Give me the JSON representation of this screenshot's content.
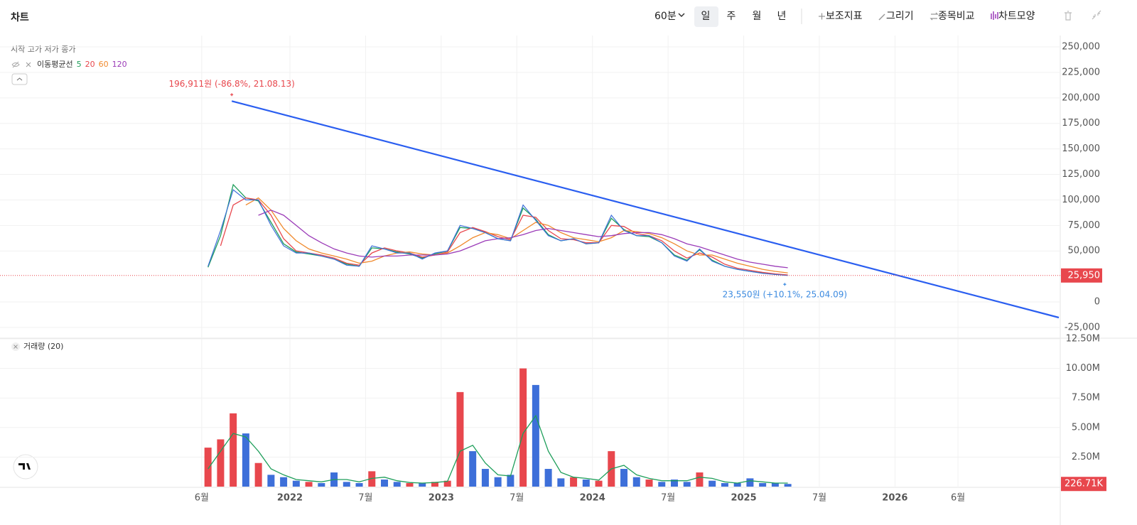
{
  "toolbar": {
    "title": "차트",
    "interval": "60분",
    "periods": [
      "일",
      "주",
      "월",
      "년"
    ],
    "tools": [
      "보조지표",
      "그리기",
      "종목비교",
      "차트모양"
    ]
  },
  "chart_data": [
    {
      "type": "line",
      "ohlc_legend": "시작 고가 저가 종가",
      "xlim": [
        "2020-02",
        "2027-02"
      ],
      "xticks": [
        {
          "value": "2021-06",
          "label": "6월"
        },
        {
          "value": "2022-01",
          "label": "2022"
        },
        {
          "value": "2022-07",
          "label": "7월"
        },
        {
          "value": "2023-01",
          "label": "2023"
        },
        {
          "value": "2023-07",
          "label": "7월"
        },
        {
          "value": "2024-01",
          "label": "2024"
        },
        {
          "value": "2024-07",
          "label": "7월"
        },
        {
          "value": "2025-01",
          "label": "2025"
        },
        {
          "value": "2025-07",
          "label": "7월"
        },
        {
          "value": "2026-01",
          "label": "2026"
        },
        {
          "value": "2026-06",
          "label": "6월"
        }
      ],
      "ylim": [
        -34800,
        257700
      ],
      "yticks": [
        {
          "value": 250000,
          "label": "250,000"
        },
        {
          "value": 225000,
          "label": "225,000"
        },
        {
          "value": 200000,
          "label": "200,000"
        },
        {
          "value": 175000,
          "label": "175,000"
        },
        {
          "value": 150000,
          "label": "150,000"
        },
        {
          "value": 125000,
          "label": "125,000"
        },
        {
          "value": 100000,
          "label": "100,000"
        },
        {
          "value": 75000,
          "label": "75,000"
        },
        {
          "value": 50000,
          "label": "50,000"
        },
        0,
        {
          "value": -25000,
          "label": "-25,000"
        }
      ],
      "grid": true,
      "x": [
        "2021-06",
        "2021-07",
        "2021-08",
        "2021-09",
        "2021-10",
        "2021-11",
        "2021-12",
        "2022-01",
        "2022-02",
        "2022-03",
        "2022-04",
        "2022-05",
        "2022-06",
        "2022-07",
        "2022-08",
        "2022-09",
        "2022-10",
        "2022-11",
        "2022-12",
        "2023-01",
        "2023-02",
        "2023-03",
        "2023-04",
        "2023-05",
        "2023-06",
        "2023-07",
        "2023-08",
        "2023-09",
        "2023-10",
        "2023-11",
        "2023-12",
        "2024-01",
        "2024-02",
        "2024-03",
        "2024-04",
        "2024-05",
        "2024-06",
        "2024-07",
        "2024-08",
        "2024-09",
        "2024-10",
        "2024-11",
        "2024-12",
        "2025-01",
        "2025-02",
        "2025-03",
        "2025-04"
      ],
      "close": {
        "color": "#3d6fd9",
        "values": [
          35000,
          70000,
          110000,
          100000,
          100000,
          75000,
          55000,
          48000,
          48000,
          45000,
          42000,
          36000,
          35000,
          55000,
          52000,
          48000,
          48000,
          42000,
          48000,
          50000,
          75000,
          72000,
          68000,
          62000,
          60000,
          95000,
          80000,
          65000,
          60000,
          62000,
          57000,
          58000,
          85000,
          70000,
          65000,
          65000,
          58000,
          45000,
          40000,
          52000,
          40000,
          35000,
          32000,
          30000,
          28000,
          27000,
          25950
        ]
      },
      "moving_averages": {
        "label": "이동평균선",
        "series": [
          {
            "name": "5",
            "color": "#1e9e5a",
            "values": [
              34000,
              65000,
              115000,
              102000,
              99000,
              78000,
              57000,
              49000,
              47000,
              45000,
              42000,
              37000,
              35000,
              53000,
              52000,
              49000,
              47000,
              43000,
              47000,
              50000,
              73000,
              72000,
              68000,
              62000,
              60000,
              92000,
              81000,
              66000,
              60000,
              62000,
              57000,
              58000,
              82000,
              71000,
              65000,
              64000,
              58000,
              46000,
              41000,
              51000,
              41000,
              35000,
              32000,
              30000,
              28500,
              27000,
              26200
            ]
          },
          {
            "name": "20",
            "color": "#e8474d",
            "values": [
              null,
              55000,
              95000,
              102000,
              100000,
              85000,
              62000,
              50000,
              48000,
              46000,
              43000,
              38000,
              36000,
              48000,
              53000,
              50000,
              48000,
              44000,
              46000,
              49000,
              68000,
              73000,
              69000,
              64000,
              61000,
              85000,
              83000,
              70000,
              62000,
              61000,
              58000,
              58000,
              75000,
              74000,
              67000,
              65000,
              60000,
              50000,
              43000,
              48000,
              44000,
              37000,
              33000,
              31000,
              29000,
              27500,
              26500
            ]
          },
          {
            "name": "60",
            "color": "#f0892c",
            "values": [
              null,
              null,
              null,
              95000,
              102000,
              90000,
              72000,
              60000,
              52000,
              48000,
              45000,
              42000,
              38000,
              40000,
              45000,
              48000,
              49000,
              47000,
              46000,
              48000,
              55000,
              63000,
              68000,
              66000,
              62000,
              70000,
              78000,
              75000,
              68000,
              63000,
              61000,
              59000,
              63000,
              70000,
              69000,
              67000,
              63000,
              57000,
              50000,
              46000,
              46000,
              42000,
              38000,
              35000,
              32000,
              30000,
              28500
            ]
          },
          {
            "name": "120",
            "color": "#9b3bb8",
            "values": [
              null,
              null,
              null,
              null,
              85000,
              90000,
              85000,
              75000,
              65000,
              58000,
              52000,
              48000,
              45000,
              44000,
              45000,
              45000,
              46000,
              46000,
              46000,
              47000,
              50000,
              55000,
              60000,
              62000,
              63000,
              66000,
              70000,
              72000,
              70000,
              68000,
              66000,
              64000,
              65000,
              67000,
              68000,
              68000,
              66000,
              62000,
              57000,
              54000,
              50000,
              46000,
              42000,
              39000,
              37000,
              35000,
              33500
            ]
          }
        ]
      },
      "trendline": {
        "color": "#2a5ef0",
        "x": [
          "2021-08-13",
          "2027-02"
        ],
        "values": [
          196911,
          -15300
        ]
      },
      "annotations": [
        {
          "text": "196,911원 (-86.8%, 21.08.13)",
          "x": "2021-08-13",
          "value": 196911,
          "color": "#e8474d"
        },
        {
          "text": "23,550원 (+10.1%, 25.04.09)",
          "x": "2025-04-09",
          "value": 23550,
          "color": "#3d8be0"
        }
      ],
      "last_price": {
        "value": 25950,
        "label": "25,950",
        "color": "#e8474d"
      }
    },
    {
      "type": "bar",
      "legend": "거래량 (20)",
      "xlim": [
        "2020-02",
        "2027-02"
      ],
      "ylim": [
        0,
        12500000
      ],
      "yticks": [
        {
          "value": 12500000,
          "label": "12.50M"
        },
        {
          "value": 10000000,
          "label": "10.00M"
        },
        {
          "value": 7500000,
          "label": "7.50M"
        },
        {
          "value": 5000000,
          "label": "5.00M"
        },
        {
          "value": 2500000,
          "label": "2.50M"
        }
      ],
      "grid": true,
      "up_color": "#e8474d",
      "down_color": "#3d6fd9",
      "x": [
        "2021-06",
        "2021-07",
        "2021-08",
        "2021-09",
        "2021-10",
        "2021-11",
        "2021-12",
        "2022-01",
        "2022-02",
        "2022-03",
        "2022-04",
        "2022-05",
        "2022-06",
        "2022-07",
        "2022-08",
        "2022-09",
        "2022-10",
        "2022-11",
        "2022-12",
        "2023-01",
        "2023-02",
        "2023-03",
        "2023-04",
        "2023-05",
        "2023-06",
        "2023-07",
        "2023-08",
        "2023-09",
        "2023-10",
        "2023-11",
        "2023-12",
        "2024-01",
        "2024-02",
        "2024-03",
        "2024-04",
        "2024-05",
        "2024-06",
        "2024-07",
        "2024-08",
        "2024-09",
        "2024-10",
        "2024-11",
        "2024-12",
        "2025-01",
        "2025-02",
        "2025-03",
        "2025-04"
      ],
      "values": [
        3300000,
        4000000,
        6200000,
        4500000,
        2000000,
        1000000,
        800000,
        500000,
        400000,
        300000,
        1200000,
        400000,
        300000,
        1300000,
        600000,
        400000,
        300000,
        300000,
        400000,
        500000,
        8000000,
        3000000,
        1500000,
        800000,
        1000000,
        10000000,
        8600000,
        1500000,
        700000,
        800000,
        600000,
        500000,
        3000000,
        1500000,
        800000,
        600000,
        400000,
        600000,
        400000,
        1200000,
        500000,
        300000,
        300000,
        700000,
        300000,
        300000,
        226710
      ],
      "ma": {
        "color": "#1e9e5a",
        "values": [
          1500000,
          3000000,
          4500000,
          4200000,
          3000000,
          1500000,
          1000000,
          600000,
          500000,
          400000,
          600000,
          600000,
          400000,
          700000,
          800000,
          500000,
          350000,
          300000,
          350000,
          450000,
          3000000,
          3500000,
          2000000,
          1000000,
          900000,
          4500000,
          6000000,
          3000000,
          1200000,
          800000,
          700000,
          550000,
          1500000,
          1800000,
          1000000,
          700000,
          500000,
          500000,
          500000,
          800000,
          700000,
          400000,
          300000,
          500000,
          400000,
          300000,
          300000
        ]
      },
      "last": {
        "value": 226710,
        "label": "226.71K",
        "color": "#e8474d"
      }
    }
  ]
}
